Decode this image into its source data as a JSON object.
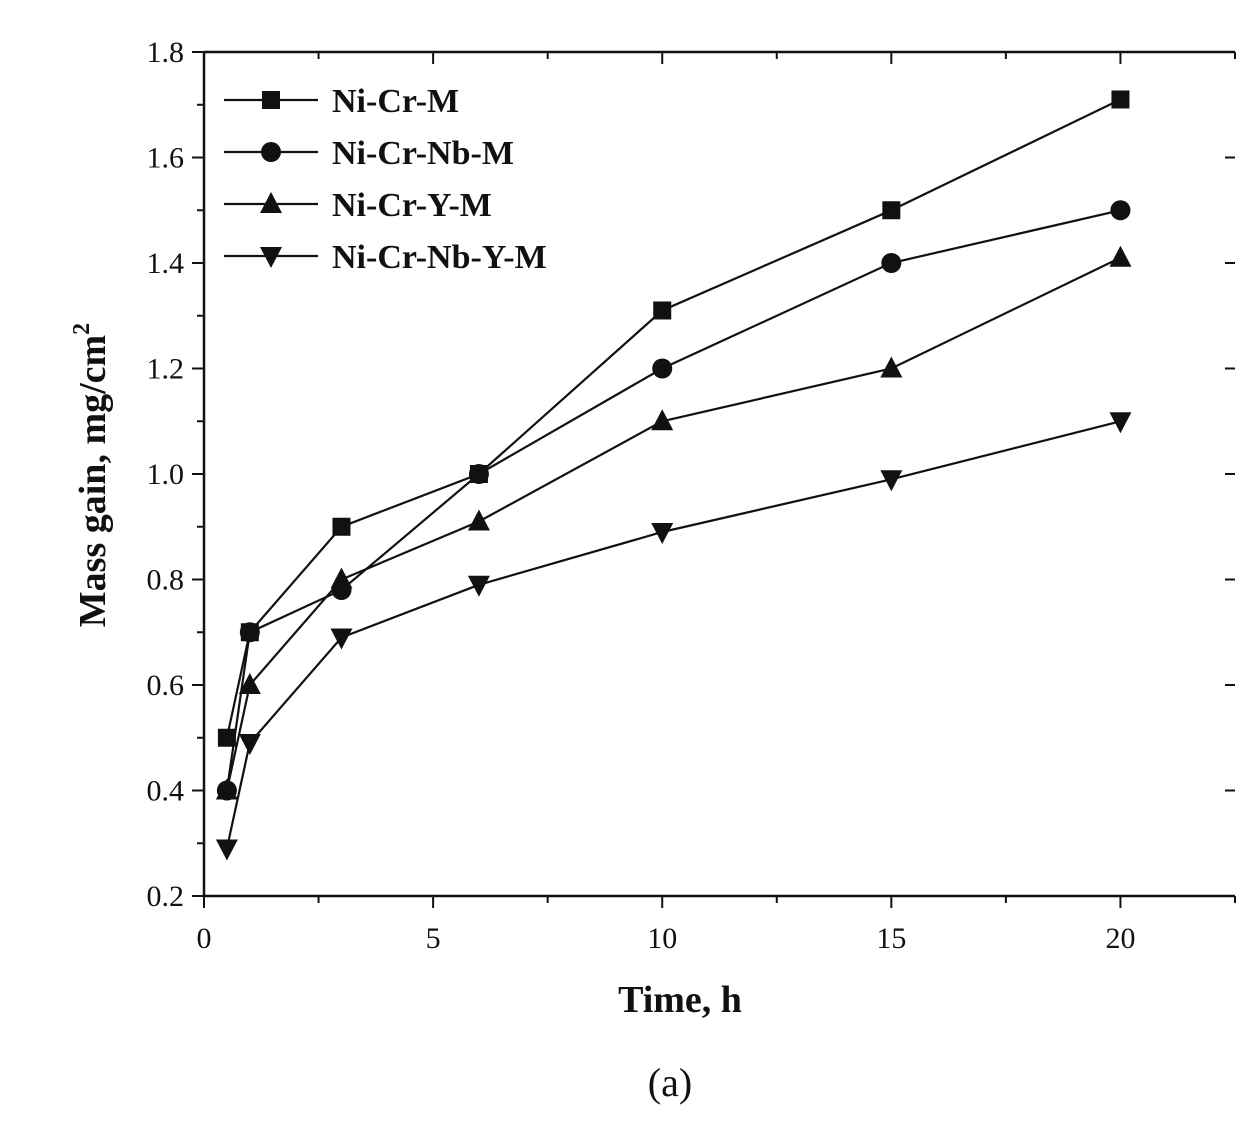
{
  "figure": {
    "panel_label": "(a)"
  },
  "chart_data": {
    "type": "line",
    "title": "",
    "xlabel": "Time, h",
    "ylabel": "Mass gain, mg/cm",
    "ylabel_superscript": "2",
    "xlim": [
      0,
      22.5
    ],
    "ylim": [
      0.2,
      1.8
    ],
    "x_ticks": [
      0,
      5,
      10,
      15,
      20
    ],
    "y_ticks": [
      0.2,
      0.4,
      0.6,
      0.8,
      1.0,
      1.2,
      1.4,
      1.6,
      1.8
    ],
    "x_tick_labels": [
      "0",
      "5",
      "10",
      "15",
      "20"
    ],
    "y_tick_labels": [
      "0.2",
      "0.4",
      "0.6",
      "0.8",
      "1.0",
      "1.2",
      "1.4",
      "1.6",
      "1.8"
    ],
    "grid": false,
    "legend_position": "top-left",
    "x": [
      0.5,
      1,
      3,
      6,
      10,
      15,
      20
    ],
    "series": [
      {
        "name": "Ni-Cr-M",
        "marker": "square",
        "values": [
          0.5,
          0.7,
          0.9,
          1.0,
          1.31,
          1.5,
          1.71
        ]
      },
      {
        "name": "Ni-Cr-Nb-M",
        "marker": "circle",
        "values": [
          0.4,
          0.7,
          0.78,
          1.0,
          1.2,
          1.4,
          1.5
        ]
      },
      {
        "name": "Ni-Cr-Y-M",
        "marker": "triangle-up",
        "values": [
          0.4,
          0.6,
          0.8,
          0.91,
          1.1,
          1.2,
          1.41
        ]
      },
      {
        "name": "Ni-Cr-Nb-Y-M",
        "marker": "triangle-down",
        "values": [
          0.29,
          0.49,
          0.69,
          0.79,
          0.89,
          0.99,
          1.1
        ]
      }
    ],
    "colors": {
      "line": "#111111",
      "marker": "#111111",
      "axis": "#111111"
    }
  }
}
